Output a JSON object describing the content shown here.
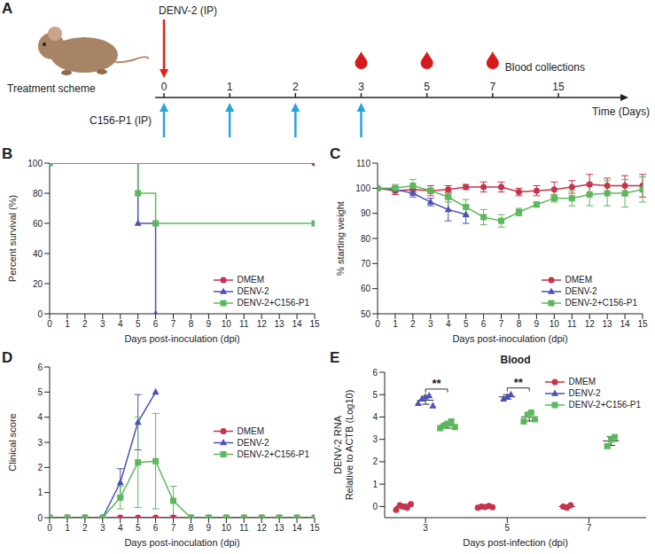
{
  "scheme": {
    "panel_label": "A",
    "label": "Treatment scheme",
    "virus": {
      "label": "DENV-2 (IP)",
      "days": [
        0
      ]
    },
    "treatment": {
      "label": "C156-P1 (IP)",
      "days": [
        0,
        1,
        2,
        3
      ]
    },
    "blood": {
      "label": "Blood collections",
      "days": [
        3,
        5,
        7
      ]
    },
    "axis": {
      "label": "Time (Days)",
      "ticks": [
        0,
        1,
        2,
        3,
        5,
        7,
        15
      ]
    }
  },
  "chart_data": [
    {
      "panel_label": "B",
      "type": "step",
      "x_label": "Days post-inoculation (dpi)",
      "y_label": "Percent survival (%)",
      "xlim": [
        0,
        15
      ],
      "xticks": [
        0,
        1,
        2,
        3,
        4,
        5,
        6,
        7,
        8,
        9,
        10,
        11,
        12,
        13,
        14,
        15
      ],
      "ylim": [
        0,
        100
      ],
      "yticks": [
        0,
        20,
        40,
        60,
        80,
        100
      ],
      "legend": "lower right",
      "series": [
        {
          "name": "DMEM",
          "color": "#c8324b",
          "marker": "circle",
          "x": [
            0,
            15
          ],
          "values": [
            100,
            100
          ]
        },
        {
          "name": "DENV-2",
          "color": "#4b52b5",
          "marker": "triangle",
          "x": [
            0,
            5,
            6
          ],
          "values": [
            100,
            60,
            0
          ]
        },
        {
          "name": "DENV-2+C156-P1",
          "color": "#5cb85c",
          "marker": "square",
          "x": [
            0,
            5,
            6,
            15
          ],
          "values": [
            100,
            80,
            60,
            60
          ]
        }
      ]
    },
    {
      "panel_label": "C",
      "type": "line",
      "x_label": "Days post-inoculation (dpi)",
      "y_label": "% starting weight",
      "xlim": [
        0,
        15
      ],
      "xticks": [
        0,
        1,
        2,
        3,
        4,
        5,
        6,
        7,
        8,
        9,
        10,
        11,
        12,
        13,
        14,
        15
      ],
      "ylim": [
        50,
        110
      ],
      "yticks": [
        50,
        60,
        70,
        80,
        90,
        100,
        110
      ],
      "legend": "lower right",
      "series": [
        {
          "name": "DMEM",
          "color": "#c8324b",
          "marker": "circle",
          "x": [
            0,
            1,
            2,
            3,
            4,
            5,
            6,
            7,
            8,
            9,
            10,
            11,
            12,
            13,
            14,
            15
          ],
          "values": [
            100,
            99,
            99.5,
            99,
            99.5,
            100.5,
            100.5,
            100.5,
            98.5,
            99,
            99.5,
            100.5,
            101.5,
            101,
            101,
            101
          ],
          "error": [
            0,
            1.5,
            1.5,
            2,
            1.5,
            1,
            2,
            2,
            1.5,
            2,
            3,
            2.5,
            4,
            3,
            4,
            4.5
          ]
        },
        {
          "name": "DENV-2",
          "color": "#4b52b5",
          "marker": "triangle",
          "x": [
            0,
            1,
            2,
            3,
            4,
            5
          ],
          "values": [
            100,
            99.5,
            98,
            94.5,
            91.5,
            89.5
          ],
          "error": [
            0,
            1,
            1.5,
            1.5,
            4.5,
            3.5
          ]
        },
        {
          "name": "DENV-2+C156-P1",
          "color": "#5cb85c",
          "marker": "square",
          "x": [
            0,
            1,
            2,
            3,
            4,
            5,
            6,
            7,
            8,
            9,
            10,
            11,
            12,
            13,
            14,
            15
          ],
          "values": [
            100,
            100,
            101,
            99,
            96.5,
            92.5,
            88.5,
            87,
            90.5,
            93.5,
            96,
            96,
            97.5,
            98,
            98,
            99.5
          ],
          "error": [
            0,
            1.5,
            2.5,
            1,
            2,
            3,
            3,
            2.5,
            1.5,
            1,
            1.5,
            3,
            4.5,
            5,
            5.5,
            5
          ]
        }
      ]
    },
    {
      "panel_label": "D",
      "type": "line",
      "x_label": "Days post-inoculation (dpi)",
      "y_label": "Clinical score",
      "xlim": [
        0,
        15
      ],
      "xticks": [
        0,
        1,
        2,
        3,
        4,
        5,
        6,
        7,
        8,
        9,
        10,
        11,
        12,
        13,
        14,
        15
      ],
      "ylim": [
        0,
        6
      ],
      "yticks": [
        0,
        1,
        2,
        3,
        4,
        5,
        6
      ],
      "legend": "right",
      "series": [
        {
          "name": "DMEM",
          "color": "#c8324b",
          "marker": "circle",
          "x": [
            0,
            1,
            2,
            3,
            4,
            5,
            6,
            7,
            8,
            9,
            10,
            11,
            12,
            13,
            14,
            15
          ],
          "values": [
            0,
            0,
            0,
            0,
            0,
            0,
            0,
            0,
            0,
            0,
            0,
            0,
            0,
            0,
            0,
            0
          ]
        },
        {
          "name": "DENV-2",
          "color": "#4b52b5",
          "marker": "triangle",
          "x": [
            0,
            1,
            2,
            3,
            4,
            5,
            6
          ],
          "values": [
            0,
            0,
            0,
            0,
            1.4,
            3.8,
            5
          ],
          "error": [
            0,
            0,
            0,
            0,
            0.55,
            1.1,
            0
          ]
        },
        {
          "name": "DENV-2+C156-P1",
          "color": "#5cb85c",
          "marker": "square",
          "x": [
            0,
            1,
            2,
            3,
            4,
            5,
            6,
            7,
            8,
            9,
            10,
            11,
            12,
            13,
            14,
            15
          ],
          "values": [
            0,
            0,
            0,
            0,
            0.8,
            2.2,
            2.25,
            0.67,
            0,
            0,
            0,
            0,
            0,
            0,
            0,
            0
          ],
          "error": [
            0,
            0,
            0,
            0,
            0.45,
            1.8,
            1.9,
            0.58,
            0,
            0,
            0,
            0,
            0,
            0,
            0,
            0
          ]
        }
      ]
    },
    {
      "panel_label": "E",
      "type": "scatter",
      "title": "Blood",
      "x_label": "Days post-infection (dpi)",
      "y_label": [
        "DENV-2 RNA",
        "Relative to ACTB (Log10)"
      ],
      "categories": [
        "3",
        "5",
        "7"
      ],
      "ylim": [
        -0.5,
        6
      ],
      "yticks": [
        0,
        1,
        2,
        3,
        4,
        5,
        6
      ],
      "legend": "upper right",
      "series": [
        {
          "name": "DMEM",
          "color": "#c8324b",
          "marker": "circle",
          "values": [
            [
              -0.15,
              0.05,
              0.0,
              -0.05,
              0.1
            ],
            [
              -0.05,
              0.0,
              -0.02,
              0.03,
              -0.03
            ],
            [
              0.0,
              -0.05,
              0.05
            ]
          ],
          "mean": [
            0,
            0,
            0
          ],
          "sd": [
            0.1,
            0.05,
            0.06
          ]
        },
        {
          "name": "DENV-2",
          "color": "#4b52b5",
          "marker": "triangle",
          "values": [
            [
              4.6,
              4.8,
              4.9,
              4.95,
              4.5
            ],
            [
              4.8,
              4.9,
              5.0
            ],
            null
          ],
          "mean": [
            4.75,
            4.9,
            null
          ],
          "sd": [
            0.18,
            0.1,
            null
          ]
        },
        {
          "name": "DENV-2+C156-P1",
          "color": "#5cb85c",
          "marker": "square",
          "values": [
            [
              3.5,
              3.6,
              3.7,
              3.8,
              3.55
            ],
            [
              3.8,
              4.1,
              4.2,
              3.9
            ],
            [
              2.7,
              3.0,
              3.1
            ]
          ],
          "mean": [
            3.63,
            4.0,
            2.93
          ],
          "sd": [
            0.13,
            0.18,
            0.2
          ]
        }
      ],
      "annotations": [
        {
          "text": "**",
          "category": "3",
          "between": [
            "DENV-2",
            "DENV-2+C156-P1"
          ]
        },
        {
          "text": "**",
          "category": "5",
          "between": [
            "DENV-2",
            "DENV-2+C156-P1"
          ]
        }
      ]
    }
  ]
}
